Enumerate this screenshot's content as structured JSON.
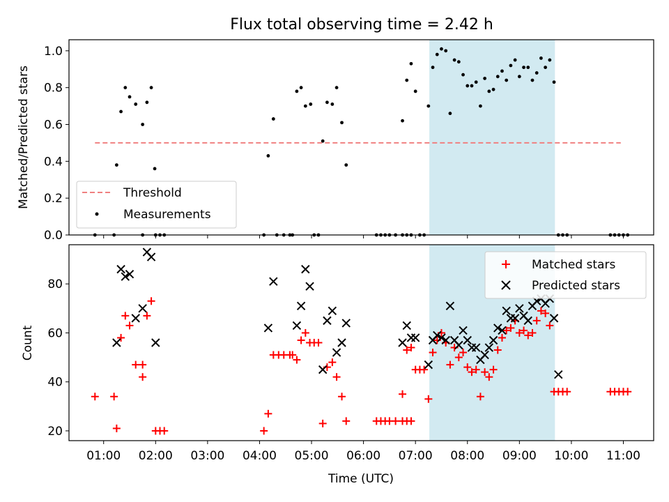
{
  "title": "Flux total observing time = 2.42 h",
  "xlabel": "Time (UTC)",
  "xticks": [
    "01:00",
    "02:00",
    "03:00",
    "04:00",
    "05:00",
    "06:00",
    "07:00",
    "08:00",
    "09:00",
    "10:00",
    "11:00"
  ],
  "colors": {
    "threshold": "#f08080",
    "matched": "#ff0000",
    "predicted": "#000000",
    "band": "#add8e6",
    "measurement": "#000000"
  },
  "chart_data": [
    {
      "type": "scatter",
      "ylabel": "Matched/Predicted stars",
      "xlim": [
        "00:20",
        "11:35"
      ],
      "ylim": [
        0,
        1.06
      ],
      "yticks": [
        "0.0",
        "0.2",
        "0.4",
        "0.6",
        "0.8",
        "1.0"
      ],
      "legend_placement": "lower-left",
      "legend": {
        "threshold": "Threshold",
        "measurements": "Measurements"
      },
      "highlight_span": [
        "07:16",
        "09:41"
      ],
      "threshold": 0.5,
      "threshold_range": [
        "00:50",
        "10:57"
      ],
      "measurements": [
        [
          "00:50",
          0
        ],
        [
          "01:12",
          0
        ],
        [
          "01:15",
          0.38
        ],
        [
          "01:20",
          0.67
        ],
        [
          "01:25",
          0.8
        ],
        [
          "01:30",
          0.75
        ],
        [
          "01:37",
          0.71
        ],
        [
          "01:45",
          0.6
        ],
        [
          "01:45",
          0
        ],
        [
          "01:50",
          0.72
        ],
        [
          "01:55",
          0.8
        ],
        [
          "01:59",
          0.36
        ],
        [
          "02:00",
          0
        ],
        [
          "02:05",
          0
        ],
        [
          "02:10",
          0
        ],
        [
          "04:05",
          0
        ],
        [
          "04:10",
          0.43
        ],
        [
          "04:16",
          0.63
        ],
        [
          "04:20",
          0
        ],
        [
          "04:28",
          0
        ],
        [
          "04:35",
          0
        ],
        [
          "04:38",
          0
        ],
        [
          "04:43",
          0.78
        ],
        [
          "04:48",
          0.8
        ],
        [
          "04:53",
          0.7
        ],
        [
          "04:59",
          0.71
        ],
        [
          "05:03",
          0
        ],
        [
          "05:08",
          0
        ],
        [
          "05:13",
          0.51
        ],
        [
          "05:18",
          0.72
        ],
        [
          "05:24",
          0.71
        ],
        [
          "05:29",
          0.8
        ],
        [
          "05:35",
          0.61
        ],
        [
          "05:40",
          0.38
        ],
        [
          "06:15",
          0
        ],
        [
          "06:20",
          0
        ],
        [
          "06:25",
          0
        ],
        [
          "06:30",
          0
        ],
        [
          "06:37",
          0
        ],
        [
          "06:45",
          0
        ],
        [
          "06:50",
          0
        ],
        [
          "06:55",
          0
        ],
        [
          "06:45",
          0.62
        ],
        [
          "06:50",
          0.84
        ],
        [
          "06:55",
          0.93
        ],
        [
          "07:00",
          0.78
        ],
        [
          "07:05",
          0
        ],
        [
          "07:10",
          0
        ],
        [
          "07:15",
          0.7
        ],
        [
          "07:20",
          0.91
        ],
        [
          "07:25",
          0.98
        ],
        [
          "07:30",
          1.01
        ],
        [
          "07:35",
          1.0
        ],
        [
          "07:40",
          0.66
        ],
        [
          "07:45",
          0.95
        ],
        [
          "07:50",
          0.94
        ],
        [
          "07:55",
          0.87
        ],
        [
          "08:00",
          0.81
        ],
        [
          "08:05",
          0.81
        ],
        [
          "08:10",
          0.83
        ],
        [
          "08:15",
          0.7
        ],
        [
          "08:20",
          0.85
        ],
        [
          "08:25",
          0.78
        ],
        [
          "08:30",
          0.79
        ],
        [
          "08:35",
          0.86
        ],
        [
          "08:40",
          0.89
        ],
        [
          "08:45",
          0.84
        ],
        [
          "08:50",
          0.92
        ],
        [
          "08:55",
          0.95
        ],
        [
          "09:00",
          0.86
        ],
        [
          "09:05",
          0.91
        ],
        [
          "09:10",
          0.91
        ],
        [
          "09:15",
          0.84
        ],
        [
          "09:20",
          0.88
        ],
        [
          "09:25",
          0.96
        ],
        [
          "09:30",
          0.91
        ],
        [
          "09:35",
          0.95
        ],
        [
          "09:40",
          0.83
        ],
        [
          "09:45",
          0
        ],
        [
          "09:50",
          0
        ],
        [
          "09:55",
          0
        ],
        [
          "10:45",
          0
        ],
        [
          "10:50",
          0
        ],
        [
          "10:55",
          0
        ],
        [
          "11:00",
          0
        ],
        [
          "11:05",
          0
        ]
      ]
    },
    {
      "type": "scatter",
      "ylabel": "Count",
      "xlim": [
        "00:20",
        "11:35"
      ],
      "ylim": [
        16,
        96
      ],
      "yticks": [
        "20",
        "40",
        "60",
        "80"
      ],
      "legend_placement": "upper-right",
      "highlight_span": [
        "07:16",
        "09:41"
      ],
      "series": [
        {
          "name": "Matched stars",
          "points": [
            [
              "00:50",
              34
            ],
            [
              "01:12",
              34
            ],
            [
              "01:15",
              21
            ],
            [
              "01:20",
              58
            ],
            [
              "01:25",
              67
            ],
            [
              "01:30",
              63
            ],
            [
              "01:37",
              47
            ],
            [
              "01:45",
              47
            ],
            [
              "01:45",
              42
            ],
            [
              "01:50",
              67
            ],
            [
              "01:55",
              73
            ],
            [
              "02:00",
              20
            ],
            [
              "02:05",
              20
            ],
            [
              "02:10",
              20
            ],
            [
              "04:05",
              20
            ],
            [
              "04:10",
              27
            ],
            [
              "04:16",
              51
            ],
            [
              "04:22",
              51
            ],
            [
              "04:28",
              51
            ],
            [
              "04:35",
              51
            ],
            [
              "04:38",
              51
            ],
            [
              "04:43",
              49
            ],
            [
              "04:48",
              57
            ],
            [
              "04:53",
              60
            ],
            [
              "04:58",
              56
            ],
            [
              "05:03",
              56
            ],
            [
              "05:08",
              56
            ],
            [
              "05:13",
              23
            ],
            [
              "05:18",
              46
            ],
            [
              "05:24",
              48
            ],
            [
              "05:29",
              42
            ],
            [
              "05:35",
              34
            ],
            [
              "05:40",
              24
            ],
            [
              "06:15",
              24
            ],
            [
              "06:20",
              24
            ],
            [
              "06:25",
              24
            ],
            [
              "06:30",
              24
            ],
            [
              "06:37",
              24
            ],
            [
              "06:45",
              24
            ],
            [
              "06:50",
              24
            ],
            [
              "06:55",
              24
            ],
            [
              "06:45",
              35
            ],
            [
              "06:50",
              53
            ],
            [
              "06:55",
              54
            ],
            [
              "07:00",
              45
            ],
            [
              "07:05",
              45
            ],
            [
              "07:10",
              45
            ],
            [
              "07:15",
              33
            ],
            [
              "07:20",
              52
            ],
            [
              "07:25",
              57
            ],
            [
              "07:30",
              60
            ],
            [
              "07:35",
              56
            ],
            [
              "07:40",
              47
            ],
            [
              "07:45",
              54
            ],
            [
              "07:50",
              50
            ],
            [
              "07:55",
              52
            ],
            [
              "08:00",
              46
            ],
            [
              "08:05",
              44
            ],
            [
              "08:10",
              45
            ],
            [
              "08:15",
              34
            ],
            [
              "08:20",
              44
            ],
            [
              "08:25",
              42
            ],
            [
              "08:30",
              45
            ],
            [
              "08:35",
              53
            ],
            [
              "08:40",
              58
            ],
            [
              "08:45",
              61
            ],
            [
              "08:50",
              62
            ],
            [
              "08:55",
              65
            ],
            [
              "09:00",
              60
            ],
            [
              "09:05",
              61
            ],
            [
              "09:10",
              59
            ],
            [
              "09:15",
              60
            ],
            [
              "09:20",
              65
            ],
            [
              "09:25",
              69
            ],
            [
              "09:30",
              68
            ],
            [
              "09:35",
              63
            ],
            [
              "09:40",
              36
            ],
            [
              "09:45",
              36
            ],
            [
              "09:50",
              36
            ],
            [
              "09:55",
              36
            ],
            [
              "10:45",
              36
            ],
            [
              "10:50",
              36
            ],
            [
              "10:55",
              36
            ],
            [
              "11:00",
              36
            ],
            [
              "11:05",
              36
            ]
          ]
        },
        {
          "name": "Predicted stars",
          "points": [
            [
              "01:15",
              56
            ],
            [
              "01:20",
              86
            ],
            [
              "01:25",
              83
            ],
            [
              "01:30",
              84
            ],
            [
              "01:37",
              66
            ],
            [
              "01:45",
              70
            ],
            [
              "01:50",
              93
            ],
            [
              "01:55",
              91
            ],
            [
              "02:00",
              56
            ],
            [
              "04:10",
              62
            ],
            [
              "04:16",
              81
            ],
            [
              "04:43",
              63
            ],
            [
              "04:48",
              71
            ],
            [
              "04:53",
              86
            ],
            [
              "04:58",
              79
            ],
            [
              "05:13",
              45
            ],
            [
              "05:18",
              65
            ],
            [
              "05:24",
              69
            ],
            [
              "05:29",
              52
            ],
            [
              "05:35",
              56
            ],
            [
              "05:40",
              64
            ],
            [
              "06:45",
              56
            ],
            [
              "06:50",
              63
            ],
            [
              "06:55",
              58
            ],
            [
              "07:00",
              58
            ],
            [
              "07:15",
              47
            ],
            [
              "07:20",
              57
            ],
            [
              "07:25",
              59
            ],
            [
              "07:30",
              58
            ],
            [
              "07:35",
              57
            ],
            [
              "07:40",
              71
            ],
            [
              "07:45",
              57
            ],
            [
              "07:50",
              55
            ],
            [
              "07:55",
              61
            ],
            [
              "08:00",
              57
            ],
            [
              "08:05",
              54
            ],
            [
              "08:10",
              54
            ],
            [
              "08:15",
              49
            ],
            [
              "08:20",
              51
            ],
            [
              "08:25",
              54
            ],
            [
              "08:30",
              57
            ],
            [
              "08:35",
              62
            ],
            [
              "08:40",
              61
            ],
            [
              "08:45",
              69
            ],
            [
              "08:50",
              66
            ],
            [
              "08:55",
              66
            ],
            [
              "09:00",
              70
            ],
            [
              "09:05",
              67
            ],
            [
              "09:10",
              65
            ],
            [
              "09:15",
              71
            ],
            [
              "09:20",
              73
            ],
            [
              "09:25",
              74
            ],
            [
              "09:30",
              72
            ],
            [
              "09:35",
              74
            ],
            [
              "09:40",
              66
            ],
            [
              "09:45",
              43
            ]
          ]
        }
      ]
    }
  ]
}
